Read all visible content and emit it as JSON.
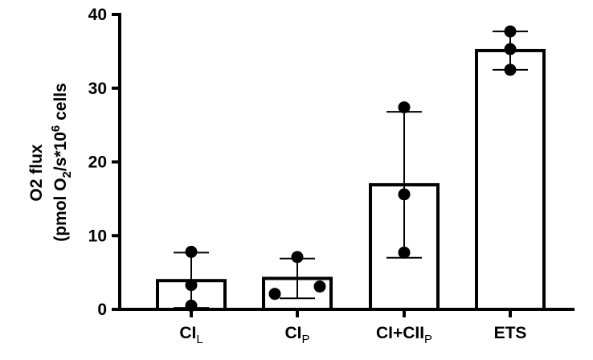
{
  "chart_data": {
    "type": "bar",
    "title": "",
    "categories": [
      {
        "main": "CI",
        "sub": "L"
      },
      {
        "main": "CI",
        "sub": "P"
      },
      {
        "main": "CI+CII",
        "sub": "P"
      },
      {
        "main": "ETS",
        "sub": ""
      }
    ],
    "values": [
      3.9,
      4.2,
      16.9,
      35.1
    ],
    "error_bars": [
      [
        0.2,
        7.7
      ],
      [
        1.5,
        6.9
      ],
      [
        7.0,
        26.8
      ],
      [
        32.5,
        37.7
      ]
    ],
    "points": [
      [
        7.8,
        3.3,
        0.5
      ],
      [
        7.1,
        3.1,
        2.1
      ],
      [
        27.4,
        15.6,
        7.7
      ],
      [
        37.7,
        35.3,
        32.5
      ]
    ],
    "ylabel_line1": "O2 flux",
    "ylabel_line2": {
      "pre": "(pmol O",
      "sub": "2",
      "mid": "/s*10",
      "sup": "6",
      "post": " cells"
    },
    "ylim": [
      0,
      40
    ],
    "yticks": [
      "0",
      "10",
      "20",
      "30",
      "40"
    ],
    "bar_fill": "#ffffff",
    "bar_stroke": "#000000",
    "point_color": "#000000",
    "grid": false
  }
}
